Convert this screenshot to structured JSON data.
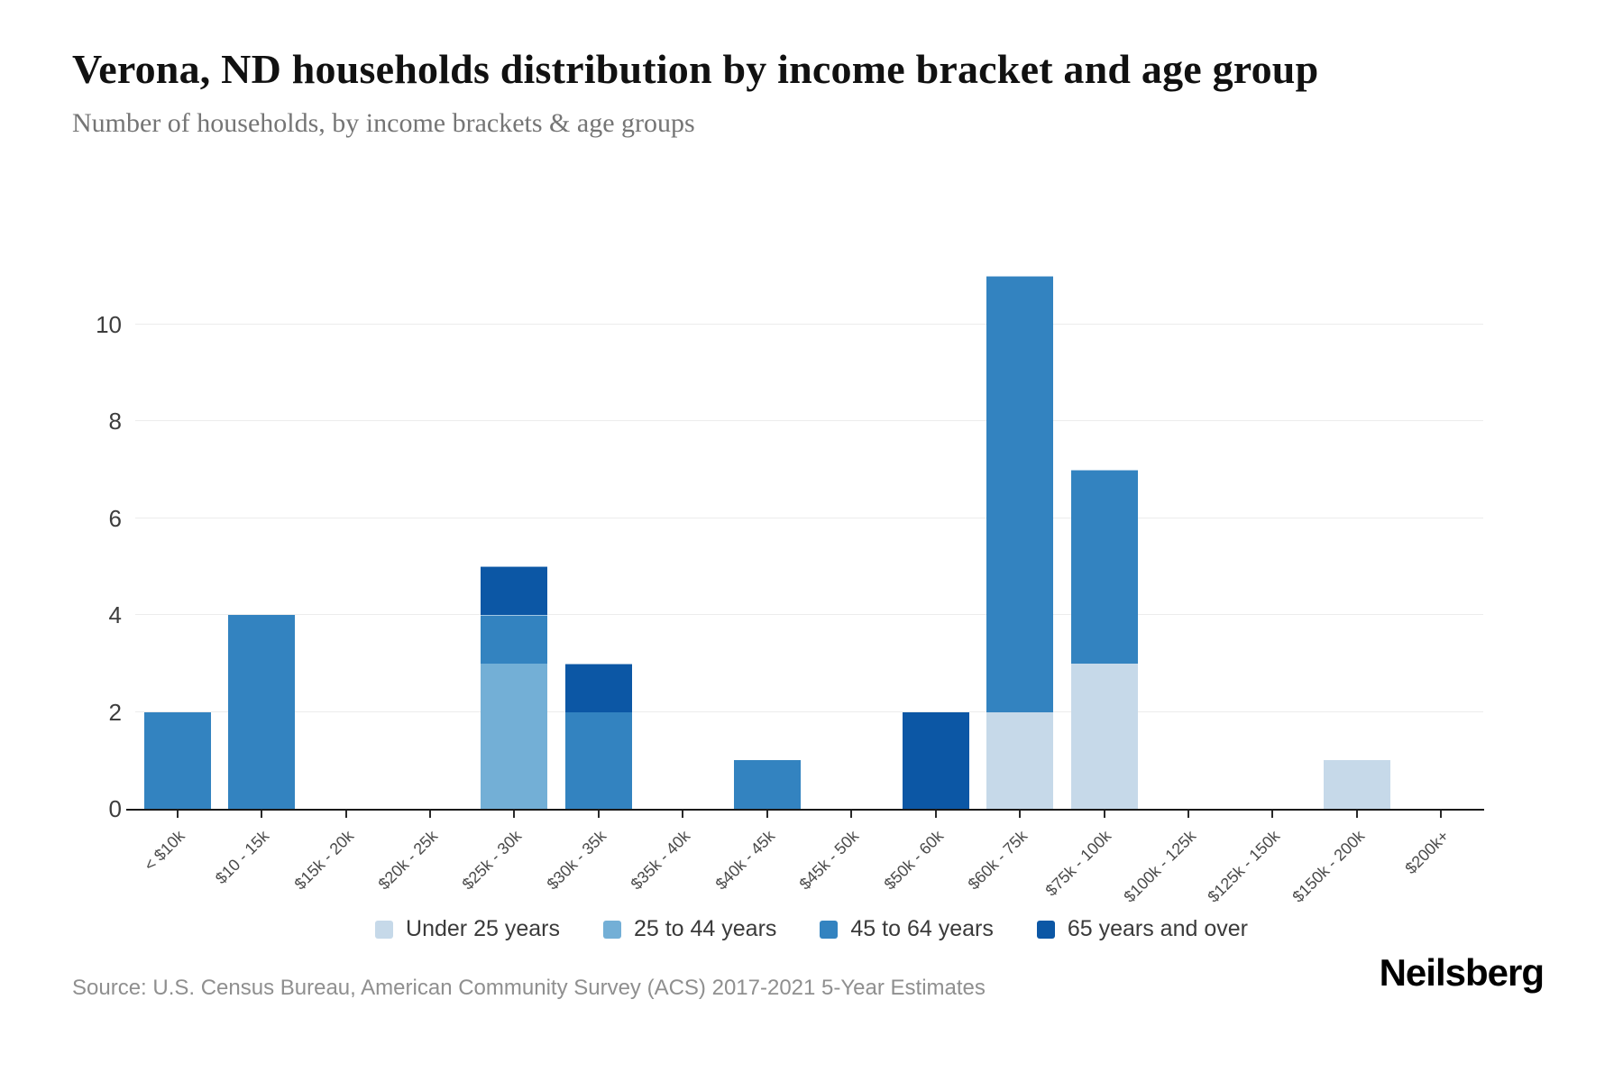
{
  "page": {
    "title": "Verona, ND households distribution by income bracket and age group",
    "subtitle": "Number of households, by income brackets & age groups",
    "source": "Source: U.S. Census Bureau, American Community Survey (ACS) 2017-2021 5-Year Estimates",
    "brand": "Neilsberg"
  },
  "chart_data": {
    "type": "bar",
    "stacked": true,
    "title": "Verona, ND households distribution by income bracket and age group",
    "subtitle": "Number of households, by income brackets & age groups",
    "xlabel": "",
    "ylabel": "Number of households",
    "categories": [
      "< $10k",
      "$10 - 15k",
      "$15k - 20k",
      "$20k - 25k",
      "$25k - 30k",
      "$30k - 35k",
      "$35k - 40k",
      "$40k - 45k",
      "$45k - 50k",
      "$50k - 60k",
      "$60k - 75k",
      "$75k - 100k",
      "$100k - 125k",
      "$125k - 150k",
      "$150k - 200k",
      "$200k+"
    ],
    "series": [
      {
        "name": "Under 25 years",
        "color": "#c6d9e9",
        "values": [
          0,
          0,
          0,
          0,
          0,
          0,
          0,
          0,
          0,
          0,
          2,
          3,
          0,
          0,
          1,
          0
        ]
      },
      {
        "name": "25 to 44 years",
        "color": "#73afd6",
        "values": [
          0,
          0,
          0,
          0,
          3,
          0,
          0,
          0,
          0,
          0,
          0,
          0,
          0,
          0,
          0,
          0
        ]
      },
      {
        "name": "45 to 64 years",
        "color": "#3383c0",
        "values": [
          2,
          4,
          0,
          0,
          1,
          2,
          0,
          1,
          0,
          0,
          9,
          4,
          0,
          0,
          0,
          0
        ]
      },
      {
        "name": "65 years and over",
        "color": "#0c57a5",
        "values": [
          0,
          0,
          0,
          0,
          1,
          1,
          0,
          0,
          0,
          2,
          0,
          0,
          0,
          0,
          0,
          0
        ]
      }
    ],
    "totals": [
      2,
      4,
      0,
      0,
      5,
      3,
      0,
      1,
      0,
      2,
      11,
      7,
      0,
      0,
      1,
      0
    ],
    "yticks": [
      0,
      2,
      4,
      6,
      8,
      10
    ],
    "ylim": [
      0,
      12
    ],
    "grid": true,
    "legend_position": "bottom"
  }
}
